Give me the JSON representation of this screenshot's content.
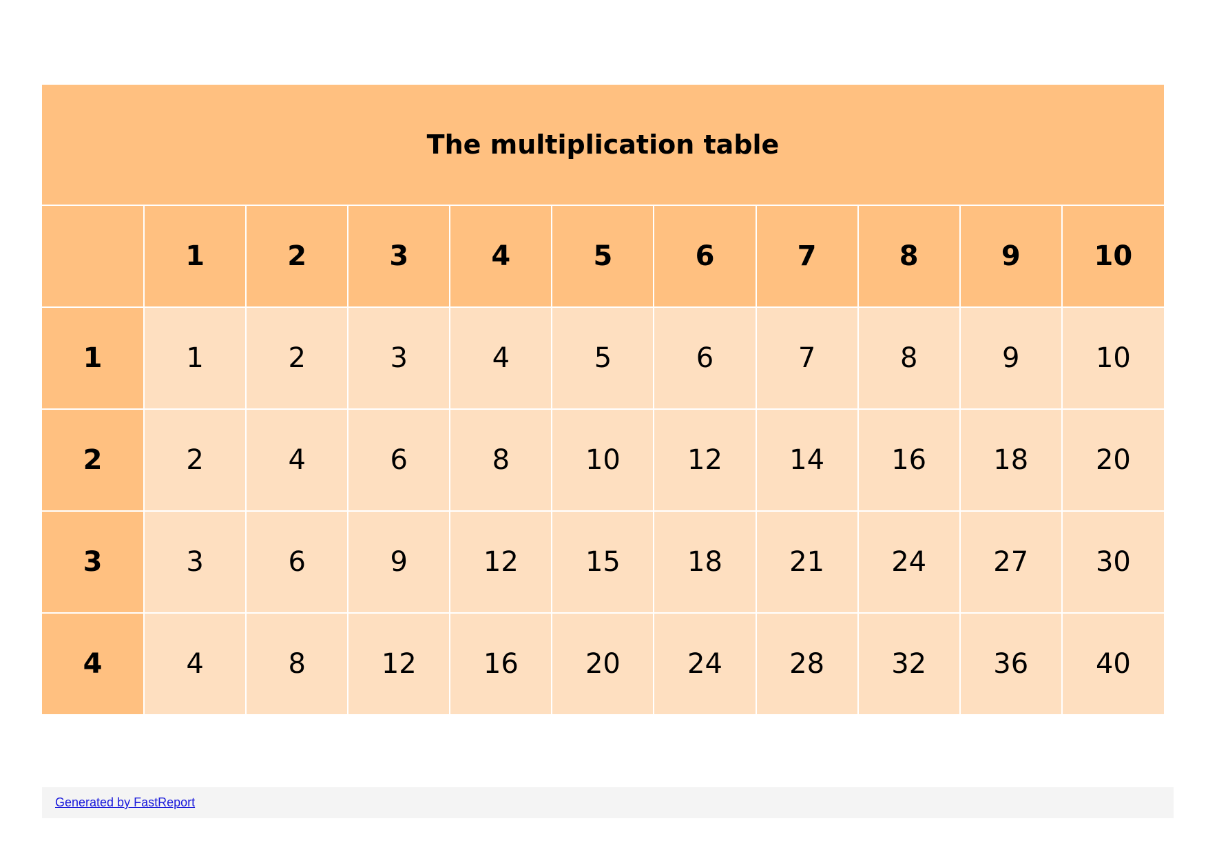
{
  "report": {
    "title": "The multiplication table",
    "corner_label": "",
    "column_headers": [
      "1",
      "2",
      "3",
      "4",
      "5",
      "6",
      "7",
      "8",
      "9",
      "10"
    ],
    "rows": [
      {
        "header": "1",
        "cells": [
          "1",
          "2",
          "3",
          "4",
          "5",
          "6",
          "7",
          "8",
          "9",
          "10"
        ]
      },
      {
        "header": "2",
        "cells": [
          "2",
          "4",
          "6",
          "8",
          "10",
          "12",
          "14",
          "16",
          "18",
          "20"
        ]
      },
      {
        "header": "3",
        "cells": [
          "3",
          "6",
          "9",
          "12",
          "15",
          "18",
          "21",
          "24",
          "27",
          "30"
        ]
      },
      {
        "header": "4",
        "cells": [
          "4",
          "8",
          "12",
          "16",
          "20",
          "24",
          "28",
          "32",
          "36",
          "40"
        ]
      }
    ]
  },
  "footer": {
    "link_text": "Generated by FastReport"
  },
  "colors": {
    "header_fill": "#ffc080",
    "cell_fill": "#fedfc0",
    "footer_fill": "#f4f4f4",
    "link": "#1a1adb"
  }
}
